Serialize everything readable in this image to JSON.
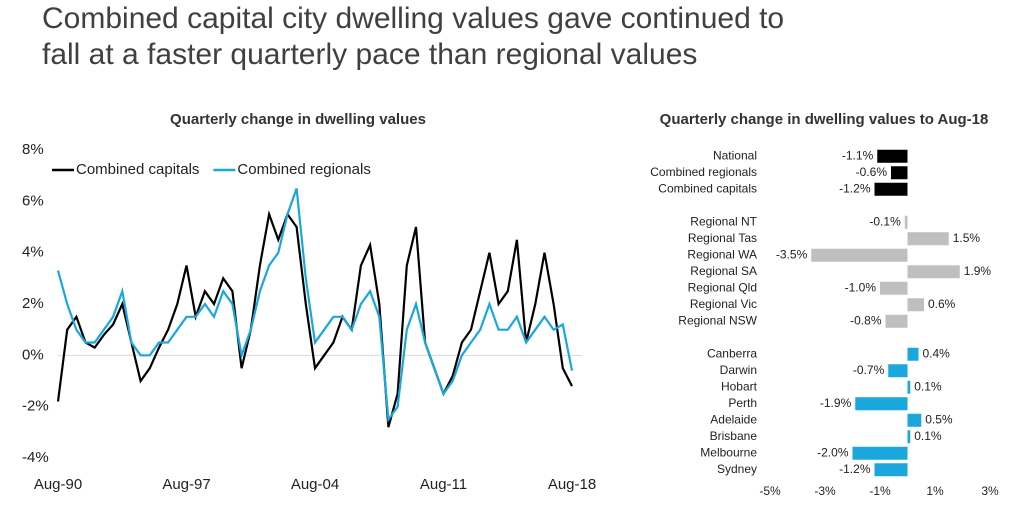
{
  "headline": [
    "Combined capital city dwelling values gave continued to",
    "fall at a faster quarterly pace than regional values"
  ],
  "chart_data": [
    {
      "type": "line",
      "title": "Quarterly change in dwelling values",
      "categories": [
        "Aug-90",
        null,
        null,
        null,
        null,
        null,
        null,
        null,
        null,
        null,
        null,
        null,
        null,
        null,
        "Aug-97",
        null,
        null,
        null,
        null,
        null,
        null,
        null,
        null,
        null,
        null,
        null,
        null,
        null,
        "Aug-04",
        null,
        null,
        null,
        null,
        null,
        null,
        null,
        null,
        null,
        null,
        null,
        null,
        null,
        "Aug-11",
        null,
        null,
        null,
        null,
        null,
        null,
        null,
        null,
        null,
        null,
        null,
        null,
        null,
        "Aug-18"
      ],
      "series": [
        {
          "name": "Combined capitals",
          "color": "#000000",
          "values": [
            -1.8,
            1.0,
            1.5,
            0.5,
            0.3,
            0.8,
            1.2,
            2.0,
            0.5,
            -1.0,
            -0.5,
            0.3,
            1.0,
            2.0,
            3.5,
            1.5,
            2.5,
            2.0,
            3.0,
            2.5,
            -0.5,
            1.0,
            3.5,
            5.5,
            4.5,
            5.5,
            5.0,
            2.0,
            -0.5,
            0.0,
            0.5,
            1.5,
            1.0,
            3.5,
            4.3,
            2.0,
            -2.8,
            -1.5,
            3.5,
            5.0,
            0.5,
            -0.5,
            -1.5,
            -0.8,
            0.5,
            1.0,
            2.5,
            4.0,
            2.0,
            2.5,
            4.5,
            0.5,
            2.0,
            4.0,
            2.0,
            -0.5,
            -1.2
          ]
        },
        {
          "name": "Combined regionals",
          "color": "#1aa7dd",
          "values": [
            3.3,
            2.0,
            1.0,
            0.5,
            0.5,
            1.0,
            1.5,
            2.5,
            0.5,
            0.0,
            0.0,
            0.5,
            0.5,
            1.0,
            1.5,
            1.5,
            2.0,
            1.5,
            2.5,
            2.0,
            0.0,
            1.0,
            2.5,
            3.5,
            4.0,
            5.5,
            6.5,
            3.0,
            0.5,
            1.0,
            1.5,
            1.5,
            1.0,
            2.0,
            2.5,
            1.5,
            -2.5,
            -2.0,
            1.0,
            2.0,
            0.5,
            -0.5,
            -1.5,
            -1.0,
            0.0,
            0.5,
            1.0,
            2.0,
            1.0,
            1.0,
            1.5,
            0.5,
            1.0,
            1.5,
            1.0,
            1.2,
            -0.6
          ]
        }
      ],
      "ylim": [
        -4,
        8
      ],
      "yticks": [
        {
          "value": -4,
          "label": "-4%"
        },
        {
          "value": -2,
          "label": "-2%"
        },
        {
          "value": 0,
          "label": "0%"
        },
        {
          "value": 2,
          "label": "2%"
        },
        {
          "value": 4,
          "label": "4%"
        },
        {
          "value": 6,
          "label": "6%"
        },
        {
          "value": 8,
          "label": "8%"
        }
      ],
      "legend": "top-left"
    },
    {
      "type": "hbar",
      "title": "Quarterly change in dwelling values to Aug-18",
      "categories": [
        "National",
        "Combined regionals",
        "Combined capitals",
        null,
        "Regional NT",
        "Regional Tas",
        "Regional WA",
        "Regional SA",
        "Regional Qld",
        "Regional Vic",
        "Regional NSW",
        null,
        "Canberra",
        "Darwin",
        "Hobart",
        "Perth",
        "Adelaide",
        "Brisbane",
        "Melbourne",
        "Sydney"
      ],
      "values": [
        -1.1,
        -0.6,
        -1.2,
        null,
        -0.1,
        1.5,
        -3.5,
        1.9,
        -1.0,
        0.6,
        -0.8,
        null,
        0.4,
        -0.7,
        0.1,
        -1.9,
        0.5,
        0.1,
        -2.0,
        -1.2
      ],
      "value_labels": [
        "-1.1%",
        "-0.6%",
        "-1.2%",
        null,
        "-0.1%",
        "1.5%",
        "-3.5%",
        "1.9%",
        "-1.0%",
        "0.6%",
        "-0.8%",
        null,
        "0.4%",
        "-0.7%",
        "0.1%",
        "-1.9%",
        "0.5%",
        "0.1%",
        "-2.0%",
        "-1.2%"
      ],
      "colors": [
        "#000000",
        "#000000",
        "#000000",
        null,
        "#bfbfbf",
        "#bfbfbf",
        "#bfbfbf",
        "#bfbfbf",
        "#bfbfbf",
        "#bfbfbf",
        "#bfbfbf",
        null,
        "#1aa7dd",
        "#1aa7dd",
        "#1aa7dd",
        "#1aa7dd",
        "#1aa7dd",
        "#1aa7dd",
        "#1aa7dd",
        "#1aa7dd"
      ],
      "xlim": [
        -5,
        3
      ],
      "xticks": [
        {
          "value": -5,
          "label": "-5%"
        },
        {
          "value": -3,
          "label": "-3%"
        },
        {
          "value": -1,
          "label": "-1%"
        },
        {
          "value": 1,
          "label": "1%"
        },
        {
          "value": 3,
          "label": "3%"
        }
      ]
    }
  ]
}
